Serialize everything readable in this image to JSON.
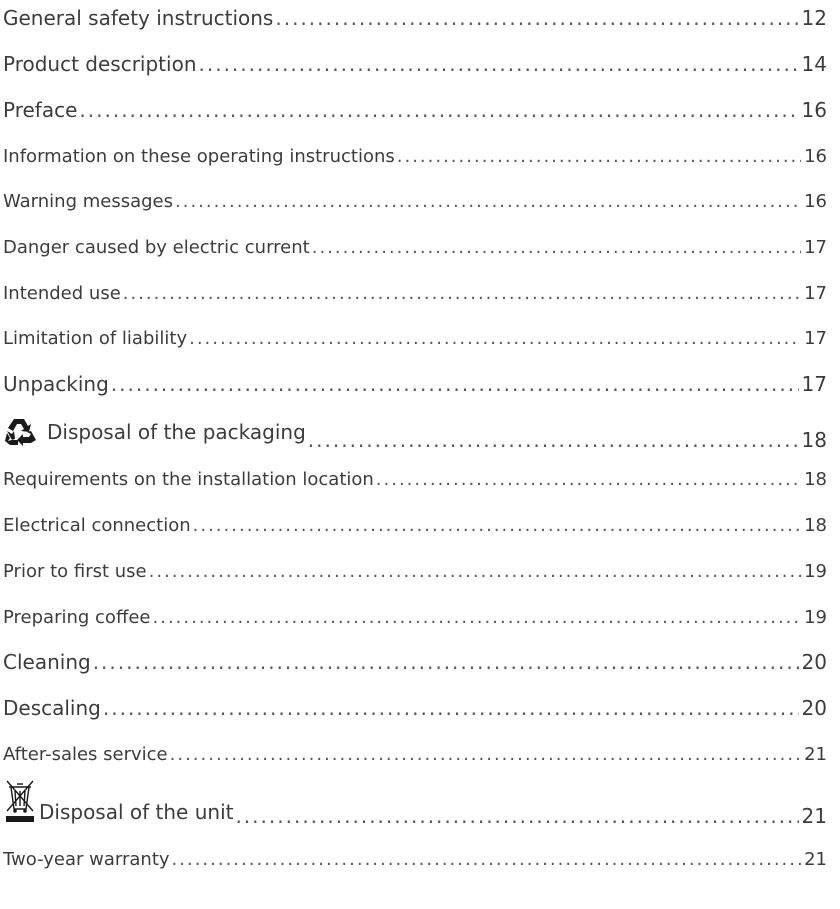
{
  "toc": {
    "entries": [
      {
        "title": "General safety instructions",
        "page": "12"
      },
      {
        "title": "Product description",
        "page": "14"
      },
      {
        "title": "Preface",
        "page": "16"
      },
      {
        "title": "Information on these operating instructions",
        "page": "16"
      },
      {
        "title": "Warning messages",
        "page": "16"
      },
      {
        "title": "Danger caused by electric current",
        "page": "17"
      },
      {
        "title": "Intended use",
        "page": "17"
      },
      {
        "title": "Limitation of liability",
        "page": "17"
      },
      {
        "title": "Unpacking",
        "page": "17"
      },
      {
        "title": "Disposal of the packaging",
        "page": "18",
        "icon": "recycle-icon"
      },
      {
        "title": "Requirements on the installation location",
        "page": "18"
      },
      {
        "title": "Electrical connection",
        "page": "18"
      },
      {
        "title": "Prior to first use",
        "page": "19"
      },
      {
        "title": "Preparing coffee",
        "page": "19"
      },
      {
        "title": "Cleaning",
        "page": "20"
      },
      {
        "title": "Descaling",
        "page": "20"
      },
      {
        "title": "After-sales service",
        "page": "21"
      },
      {
        "title": "Disposal of the unit",
        "page": "21",
        "icon": "crossed-bin-icon"
      },
      {
        "title": "Two-year warranty",
        "page": "21"
      }
    ]
  }
}
